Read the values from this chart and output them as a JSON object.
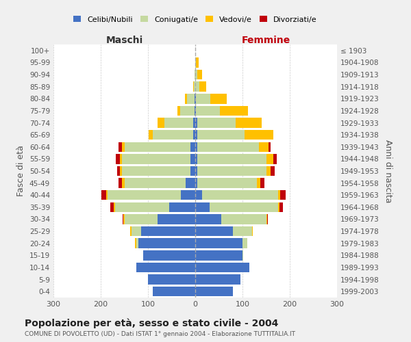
{
  "age_groups": [
    "0-4",
    "5-9",
    "10-14",
    "15-19",
    "20-24",
    "25-29",
    "30-34",
    "35-39",
    "40-44",
    "45-49",
    "50-54",
    "55-59",
    "60-64",
    "65-69",
    "70-74",
    "75-79",
    "80-84",
    "85-89",
    "90-94",
    "95-99",
    "100+"
  ],
  "birth_years": [
    "1999-2003",
    "1994-1998",
    "1989-1993",
    "1984-1988",
    "1979-1983",
    "1974-1978",
    "1969-1973",
    "1964-1968",
    "1959-1963",
    "1954-1958",
    "1949-1953",
    "1944-1948",
    "1939-1943",
    "1934-1938",
    "1929-1933",
    "1924-1928",
    "1919-1923",
    "1914-1918",
    "1909-1913",
    "1904-1908",
    "≤ 1903"
  ],
  "maschi": {
    "celibi": [
      90,
      100,
      125,
      110,
      120,
      115,
      80,
      55,
      30,
      20,
      10,
      10,
      10,
      5,
      5,
      2,
      2,
      0,
      0,
      0,
      0
    ],
    "coniugati": [
      0,
      0,
      0,
      0,
      5,
      20,
      70,
      115,
      155,
      130,
      145,
      145,
      140,
      85,
      60,
      30,
      15,
      3,
      2,
      0,
      0
    ],
    "vedovi": [
      0,
      0,
      0,
      0,
      2,
      2,
      2,
      2,
      3,
      5,
      5,
      5,
      5,
      8,
      15,
      5,
      5,
      2,
      0,
      0,
      0
    ],
    "divorziati": [
      0,
      0,
      0,
      0,
      0,
      0,
      2,
      8,
      10,
      8,
      5,
      8,
      8,
      0,
      0,
      0,
      0,
      0,
      0,
      0,
      0
    ]
  },
  "femmine": {
    "nubili": [
      80,
      95,
      115,
      100,
      100,
      80,
      55,
      30,
      15,
      5,
      5,
      5,
      5,
      5,
      5,
      2,
      2,
      0,
      0,
      0,
      0
    ],
    "coniugate": [
      0,
      0,
      0,
      2,
      10,
      40,
      95,
      145,
      160,
      125,
      145,
      145,
      130,
      100,
      80,
      50,
      30,
      8,
      5,
      2,
      0
    ],
    "vedove": [
      0,
      0,
      0,
      0,
      0,
      2,
      2,
      3,
      5,
      8,
      10,
      15,
      20,
      60,
      55,
      60,
      35,
      15,
      10,
      5,
      0
    ],
    "divorziate": [
      0,
      0,
      0,
      0,
      0,
      0,
      2,
      8,
      12,
      8,
      8,
      8,
      5,
      0,
      0,
      0,
      0,
      0,
      0,
      0,
      0
    ]
  },
  "colors": {
    "celibi": "#4472c4",
    "coniugati": "#c5d9a0",
    "vedovi": "#ffc000",
    "divorziati": "#c0000b"
  },
  "xlim": 300,
  "title": "Popolazione per età, sesso e stato civile - 2004",
  "subtitle": "COMUNE DI POVOLETTO (UD) - Dati ISTAT 1° gennaio 2004 - Elaborazione TUTTITALIA.IT",
  "ylabel": "Fasce di età",
  "ylabel_right": "Anni di nascita",
  "legend_labels": [
    "Celibi/Nubili",
    "Coniugati/e",
    "Vedovi/e",
    "Divorziati/e"
  ],
  "bg_color": "#f0f0f0",
  "plot_bg": "#ffffff",
  "maschi_label": "Maschi",
  "femmine_label": "Femmine",
  "femmine_color": "#c0000b"
}
